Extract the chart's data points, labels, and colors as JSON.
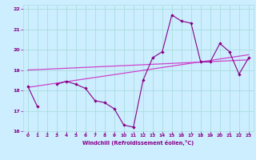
{
  "title": "",
  "xlabel": "Windchill (Refroidissement éolien,°C)",
  "bg_color": "#cceeff",
  "grid_color": "#aadddd",
  "line_color": "#880088",
  "trend_color": "#cc44cc",
  "x_data": [
    0,
    1,
    2,
    3,
    4,
    5,
    6,
    7,
    8,
    9,
    10,
    11,
    12,
    13,
    14,
    15,
    16,
    17,
    18,
    19,
    20,
    21,
    22,
    23
  ],
  "y_main": [
    18.2,
    17.2,
    null,
    18.3,
    18.45,
    18.3,
    18.1,
    17.5,
    17.4,
    17.1,
    16.3,
    16.2,
    18.5,
    19.6,
    19.9,
    21.7,
    21.4,
    21.3,
    19.4,
    19.4,
    20.3,
    19.9,
    18.8,
    19.6
  ],
  "y_trend1_start": 19.0,
  "y_trend1_end": 19.5,
  "y_trend2_start": 18.15,
  "y_trend2_end": 19.75,
  "xlim": [
    -0.5,
    23.5
  ],
  "ylim": [
    16.0,
    22.2
  ],
  "yticks": [
    16,
    17,
    18,
    19,
    20,
    21,
    22
  ],
  "xticks": [
    0,
    1,
    2,
    3,
    4,
    5,
    6,
    7,
    8,
    9,
    10,
    11,
    12,
    13,
    14,
    15,
    16,
    17,
    18,
    19,
    20,
    21,
    22,
    23
  ]
}
